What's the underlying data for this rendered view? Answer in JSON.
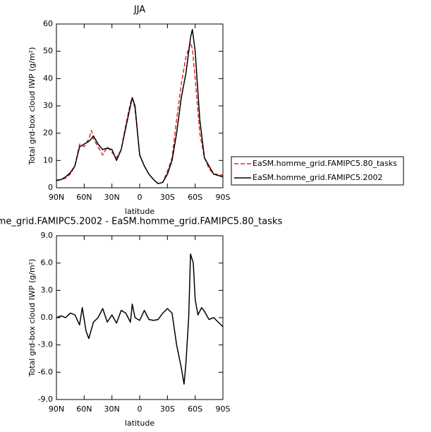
{
  "chart_data": [
    {
      "type": "line",
      "title": "JJA",
      "xlabel": "latitude",
      "ylabel": "Total grd-box cloud IWP (g/m²)",
      "x": [
        90,
        85,
        80,
        75,
        70,
        65,
        60,
        55,
        52,
        50,
        45,
        40,
        35,
        30,
        25,
        20,
        15,
        10,
        8,
        5,
        0,
        -5,
        -10,
        -15,
        -20,
        -25,
        -30,
        -35,
        -40,
        -45,
        -50,
        -55,
        -57,
        -60,
        -65,
        -70,
        -75,
        -80,
        -85,
        -90
      ],
      "series": [
        {
          "name": "EaSM.homme_grid.FAMIPC5.80_tasks",
          "color": "#e8282a",
          "dash": true,
          "values": [
            2.5,
            3,
            3.5,
            5,
            8,
            16,
            15,
            18,
            21,
            18,
            15,
            12,
            15,
            13,
            11,
            14,
            23,
            31,
            33,
            29,
            12,
            8,
            5,
            3,
            1.5,
            2,
            6,
            11,
            25,
            38,
            48,
            53,
            51,
            40,
            20,
            11,
            7,
            5,
            5,
            4.5
          ]
        },
        {
          "name": "EaSM.homme_grid.FAMIPC5.2002",
          "color": "#000000",
          "dash": false,
          "values": [
            2.8,
            3,
            4,
            5.5,
            8,
            15,
            16,
            17,
            18,
            19,
            16,
            14,
            14.5,
            14,
            10,
            14,
            22,
            30,
            33,
            30,
            12,
            8,
            5,
            3,
            1.5,
            2,
            5,
            10,
            20,
            33,
            42,
            55,
            58,
            50,
            25,
            11,
            8,
            5,
            4.5,
            4
          ]
        }
      ],
      "xlim": [
        90,
        -90
      ],
      "xticks": [
        {
          "value": 90,
          "label": "90N"
        },
        {
          "value": 60,
          "label": "60N"
        },
        {
          "value": 30,
          "label": "30N"
        },
        0,
        {
          "value": -30,
          "label": "30S"
        },
        {
          "value": -60,
          "label": "60S"
        },
        {
          "value": -90,
          "label": "90S"
        }
      ],
      "ylim": [
        0,
        60
      ],
      "yticks": [
        0,
        10,
        20,
        30,
        40,
        50,
        60
      ],
      "legend": "right"
    },
    {
      "type": "line",
      "title": "me_grid.FAMIPC5.2002 - EaSM.homme_grid.FAMIPC5.80_tasks",
      "xlabel": "latitude",
      "ylabel": "Total grd-box cloud IWP (g/m²)",
      "x": [
        90,
        85,
        80,
        75,
        70,
        65,
        62,
        58,
        55,
        50,
        45,
        40,
        35,
        30,
        25,
        20,
        15,
        10,
        8,
        5,
        0,
        -5,
        -10,
        -15,
        -20,
        -25,
        -30,
        -35,
        -40,
        -45,
        -48,
        -50,
        -53,
        -55,
        -58,
        -60,
        -63,
        -67,
        -70,
        -75,
        -80,
        -85,
        -90
      ],
      "series": [
        {
          "color": "#000000",
          "dash": false,
          "values": [
            0,
            0.2,
            0,
            0.5,
            0.3,
            -0.8,
            1.1,
            -1.5,
            -2.3,
            -0.5,
            0,
            1,
            -0.5,
            0.3,
            -0.6,
            0.8,
            0.5,
            -0.5,
            1.5,
            0,
            -0.3,
            0.8,
            -0.2,
            -0.3,
            -0.2,
            0.5,
            1.0,
            0.5,
            -3,
            -5.5,
            -7.3,
            -5,
            0,
            7,
            6,
            2,
            0.3,
            1.1,
            0.7,
            -0.2,
            0,
            -0.5,
            -1
          ]
        }
      ],
      "xlim": [
        90,
        -90
      ],
      "xticks": [
        {
          "value": 90,
          "label": "90N"
        },
        {
          "value": 60,
          "label": "60N"
        },
        {
          "value": 30,
          "label": "30N"
        },
        0,
        {
          "value": -30,
          "label": "30S"
        },
        {
          "value": -60,
          "label": "60S"
        },
        {
          "value": -90,
          "label": "90S"
        }
      ],
      "ylim": [
        -9,
        9
      ],
      "yticks": [
        {
          "value": -9,
          "label": "-9.0"
        },
        {
          "value": -6,
          "label": "-6.0"
        },
        {
          "value": -3,
          "label": "-3.0"
        },
        {
          "value": 0,
          "label": "0.0"
        },
        {
          "value": 3,
          "label": "3.0"
        },
        {
          "value": 6,
          "label": "6.0"
        },
        {
          "value": 9,
          "label": "9.0"
        }
      ]
    }
  ]
}
